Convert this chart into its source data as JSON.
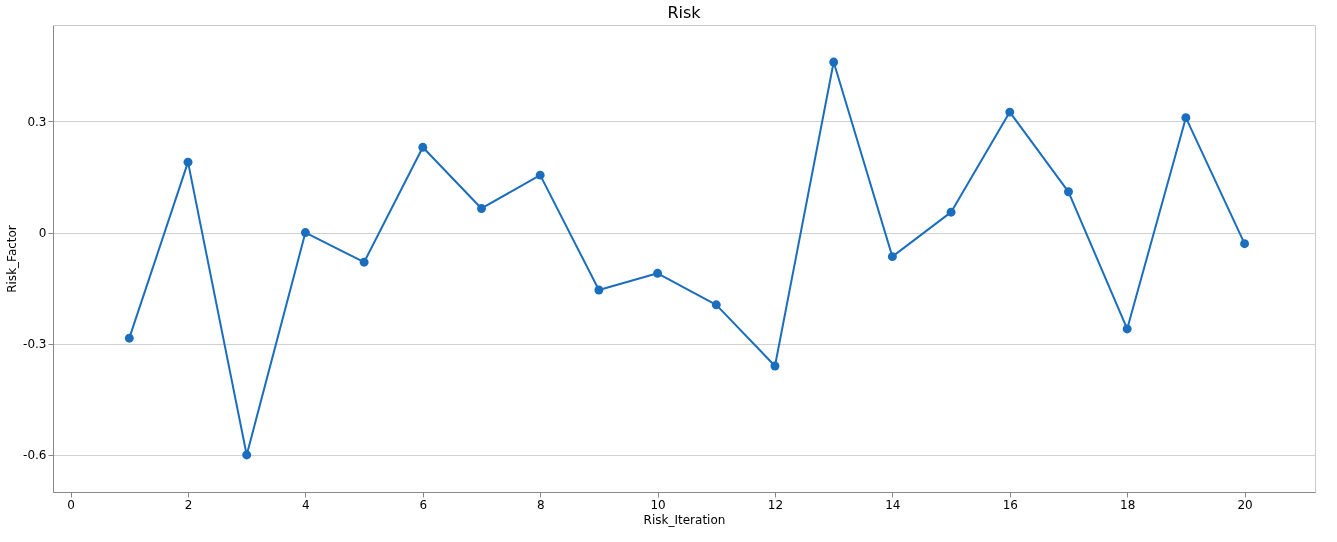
{
  "chart_data": {
    "type": "line",
    "title": "Risk",
    "xlabel": "Risk_Iteration",
    "ylabel": "Risk_Factor",
    "x": [
      1,
      2,
      3,
      4,
      5,
      6,
      7,
      8,
      9,
      10,
      11,
      12,
      13,
      14,
      15,
      16,
      17,
      18,
      19,
      20
    ],
    "series": [
      {
        "color": "#1a6ebd",
        "values": [
          -0.285,
          0.19,
          -0.6,
          0.0,
          -0.08,
          0.23,
          0.065,
          0.155,
          -0.155,
          -0.11,
          -0.195,
          -0.36,
          0.46,
          -0.065,
          0.055,
          0.325,
          0.11,
          -0.26,
          0.31,
          -0.03
        ]
      }
    ],
    "xlim": [
      -0.3,
      21.2
    ],
    "xticks": [
      0,
      2,
      4,
      6,
      8,
      10,
      12,
      14,
      16,
      18,
      20
    ],
    "ylim": [
      -0.7,
      0.56
    ],
    "yticks": [
      -0.6,
      -0.3,
      0,
      0.3
    ],
    "grid": "y",
    "marker": "circle",
    "line_style": "solid",
    "legend": false
  }
}
